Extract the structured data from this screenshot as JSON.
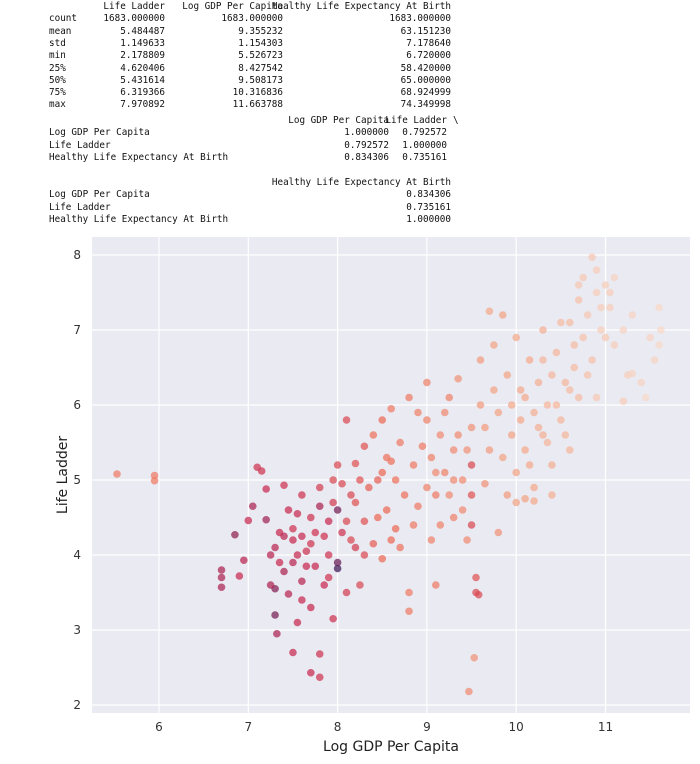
{
  "describe_table": {
    "columns": [
      "Life Ladder",
      "Log GDP Per Capita",
      "Healthy Life Expectancy At Birth"
    ],
    "rows": [
      {
        "index": "count",
        "values": [
          "1683.000000",
          "1683.000000",
          "1683.000000"
        ]
      },
      {
        "index": "mean",
        "values": [
          "5.484487",
          "9.355232",
          "63.151230"
        ]
      },
      {
        "index": "std",
        "values": [
          "1.149633",
          "1.154303",
          "7.178640"
        ]
      },
      {
        "index": "min",
        "values": [
          "2.178809",
          "5.526723",
          "6.720000"
        ]
      },
      {
        "index": "25%",
        "values": [
          "4.620406",
          "8.427542",
          "58.420000"
        ]
      },
      {
        "index": "50%",
        "values": [
          "5.431614",
          "9.508173",
          "65.000000"
        ]
      },
      {
        "index": "75%",
        "values": [
          "6.319366",
          "10.316836",
          "68.924999"
        ]
      },
      {
        "index": "max",
        "values": [
          "7.970892",
          "11.663788",
          "74.349998"
        ]
      }
    ]
  },
  "corr_table_part1": {
    "columns": [
      "Log GDP Per Capita",
      "Life Ladder"
    ],
    "continuation": "\\",
    "rows": [
      {
        "index": "Log GDP Per Capita",
        "values": [
          "1.000000",
          "0.792572"
        ]
      },
      {
        "index": "Life Ladder",
        "values": [
          "0.792572",
          "1.000000"
        ]
      },
      {
        "index": "Healthy Life Expectancy At Birth",
        "values": [
          "0.834306",
          "0.735161"
        ]
      }
    ]
  },
  "corr_table_part2": {
    "columns": [
      "Healthy Life Expectancy At Birth"
    ],
    "rows": [
      {
        "index": "Log GDP Per Capita",
        "values": [
          "0.834306"
        ]
      },
      {
        "index": "Life Ladder",
        "values": [
          "0.735161"
        ]
      },
      {
        "index": "Healthy Life Expectancy At Birth",
        "values": [
          "1.000000"
        ]
      }
    ]
  },
  "chart_data": {
    "type": "scatter",
    "xlabel": "Log GDP Per Capita",
    "ylabel": "Life Ladder",
    "xlim": [
      5.3,
      11.9
    ],
    "ylim": [
      1.85,
      8.25
    ],
    "xticks": [
      "6",
      "7",
      "8",
      "9",
      "10",
      "11"
    ],
    "yticks": [
      "2",
      "3",
      "4",
      "5",
      "6",
      "7",
      "8"
    ],
    "grid": true,
    "background": "#eaeaf2",
    "color_by": "Healthy Life Expectancy At Birth",
    "colors": {
      "low": "#3e1654",
      "mid_low": "#c7284f",
      "mid": "#ec6a55",
      "mid_high": "#f3a384",
      "high": "#f8d9c7"
    },
    "point_fields": [
      "Log GDP Per Capita",
      "Life Ladder",
      "Healthy Life Expectancy At Birth"
    ],
    "points": [
      [
        5.53,
        5.08,
        60
      ],
      [
        5.95,
        5.06,
        60
      ],
      [
        5.95,
        4.99,
        60
      ],
      [
        6.7,
        3.8,
        50
      ],
      [
        6.7,
        3.7,
        50
      ],
      [
        6.7,
        3.57,
        50
      ],
      [
        6.85,
        4.27,
        48
      ],
      [
        6.9,
        3.72,
        52
      ],
      [
        6.95,
        3.93,
        51
      ],
      [
        7.0,
        4.46,
        52
      ],
      [
        7.05,
        4.65,
        50
      ],
      [
        7.1,
        5.17,
        53
      ],
      [
        7.15,
        5.12,
        53
      ],
      [
        7.2,
        4.88,
        52
      ],
      [
        7.2,
        4.47,
        49
      ],
      [
        7.25,
        4.0,
        51
      ],
      [
        7.3,
        3.55,
        47
      ],
      [
        7.3,
        3.2,
        46
      ],
      [
        7.32,
        2.95,
        50
      ],
      [
        7.35,
        4.3,
        52
      ],
      [
        7.4,
        4.93,
        53
      ],
      [
        7.4,
        3.78,
        50
      ],
      [
        7.45,
        3.48,
        51
      ],
      [
        7.5,
        4.2,
        52
      ],
      [
        7.5,
        2.7,
        52
      ],
      [
        7.5,
        3.9,
        51
      ],
      [
        7.55,
        4.55,
        52
      ],
      [
        7.55,
        3.1,
        52
      ],
      [
        7.6,
        4.8,
        53
      ],
      [
        7.6,
        3.65,
        51
      ],
      [
        7.65,
        4.05,
        53
      ],
      [
        7.7,
        4.5,
        53
      ],
      [
        7.7,
        3.3,
        52
      ],
      [
        7.7,
        2.43,
        52
      ],
      [
        7.75,
        4.3,
        53
      ],
      [
        7.75,
        3.85,
        52
      ],
      [
        7.8,
        4.9,
        54
      ],
      [
        7.8,
        4.65,
        50
      ],
      [
        7.8,
        2.68,
        53
      ],
      [
        7.8,
        2.37,
        53
      ],
      [
        7.85,
        3.6,
        52
      ],
      [
        7.9,
        4.0,
        53
      ],
      [
        7.9,
        4.45,
        52
      ],
      [
        7.95,
        3.15,
        53
      ],
      [
        7.95,
        5.0,
        55
      ],
      [
        8.0,
        3.82,
        42
      ],
      [
        8.0,
        3.9,
        45
      ],
      [
        8.0,
        4.6,
        46
      ],
      [
        8.0,
        5.2,
        55
      ],
      [
        8.05,
        4.3,
        53
      ],
      [
        8.1,
        3.5,
        54
      ],
      [
        8.1,
        5.8,
        55
      ],
      [
        8.15,
        4.8,
        55
      ],
      [
        8.2,
        4.1,
        54
      ],
      [
        8.2,
        5.22,
        56
      ],
      [
        8.25,
        3.6,
        55
      ],
      [
        8.3,
        5.45,
        56
      ],
      [
        8.3,
        4.45,
        56
      ],
      [
        7.3,
        4.1,
        51
      ],
      [
        7.35,
        3.9,
        52
      ],
      [
        7.45,
        4.6,
        52
      ],
      [
        7.5,
        4.35,
        53
      ],
      [
        7.55,
        4.0,
        52
      ],
      [
        7.6,
        3.4,
        52
      ],
      [
        7.65,
        3.85,
        52
      ],
      [
        7.7,
        4.15,
        53
      ],
      [
        7.85,
        4.25,
        53
      ],
      [
        7.9,
        3.7,
        53
      ],
      [
        7.95,
        4.7,
        54
      ],
      [
        8.05,
        4.95,
        55
      ],
      [
        8.1,
        4.45,
        55
      ],
      [
        8.15,
        4.2,
        55
      ],
      [
        8.2,
        4.7,
        56
      ],
      [
        8.25,
        5.0,
        56
      ],
      [
        8.3,
        4.0,
        55
      ],
      [
        7.4,
        4.25,
        51
      ],
      [
        7.25,
        3.6,
        50
      ],
      [
        7.6,
        4.25,
        52
      ],
      [
        8.35,
        4.9,
        57
      ],
      [
        8.4,
        4.15,
        57
      ],
      [
        8.4,
        5.6,
        59
      ],
      [
        8.45,
        5.0,
        57
      ],
      [
        8.5,
        5.8,
        58
      ],
      [
        8.5,
        3.95,
        58
      ],
      [
        8.55,
        4.6,
        58
      ],
      [
        8.6,
        5.25,
        59
      ],
      [
        8.6,
        5.95,
        60
      ],
      [
        8.65,
        4.35,
        58
      ],
      [
        8.7,
        5.5,
        60
      ],
      [
        8.75,
        4.8,
        59
      ],
      [
        8.8,
        3.25,
        60
      ],
      [
        8.8,
        3.5,
        60
      ],
      [
        8.8,
        6.1,
        60
      ],
      [
        8.85,
        5.2,
        60
      ],
      [
        8.9,
        4.65,
        60
      ],
      [
        8.95,
        5.45,
        60
      ],
      [
        9.0,
        5.8,
        61
      ],
      [
        9.0,
        6.3,
        61
      ],
      [
        9.05,
        4.2,
        61
      ],
      [
        9.1,
        4.8,
        60
      ],
      [
        9.1,
        3.6,
        60
      ],
      [
        9.15,
        5.6,
        62
      ],
      [
        9.2,
        5.1,
        61
      ],
      [
        9.25,
        6.1,
        61
      ],
      [
        9.3,
        4.5,
        61
      ],
      [
        9.3,
        5.4,
        62
      ],
      [
        9.35,
        6.35,
        63
      ],
      [
        9.4,
        5.0,
        62
      ],
      [
        9.45,
        4.2,
        62
      ],
      [
        9.5,
        5.7,
        63
      ],
      [
        9.5,
        4.8,
        56
      ],
      [
        9.5,
        5.2,
        55
      ],
      [
        9.5,
        4.4,
        55
      ],
      [
        9.55,
        3.7,
        56
      ],
      [
        9.55,
        3.5,
        55
      ],
      [
        9.58,
        3.47,
        55
      ],
      [
        9.47,
        2.18,
        62
      ],
      [
        9.53,
        2.63,
        63
      ],
      [
        8.45,
        4.5,
        58
      ],
      [
        8.55,
        5.3,
        59
      ],
      [
        8.65,
        5.0,
        59
      ],
      [
        8.7,
        4.1,
        59
      ],
      [
        8.85,
        4.4,
        60
      ],
      [
        8.9,
        5.9,
        61
      ],
      [
        9.0,
        4.9,
        61
      ],
      [
        9.05,
        5.3,
        61
      ],
      [
        9.15,
        4.4,
        61
      ],
      [
        9.2,
        5.9,
        62
      ],
      [
        9.25,
        4.8,
        62
      ],
      [
        9.35,
        5.6,
        62
      ],
      [
        9.4,
        4.6,
        62
      ],
      [
        9.45,
        5.4,
        63
      ],
      [
        8.5,
        5.1,
        58
      ],
      [
        8.6,
        4.2,
        58
      ],
      [
        9.1,
        5.1,
        62
      ],
      [
        9.3,
        5.0,
        62
      ],
      [
        9.6,
        6.0,
        64
      ],
      [
        9.6,
        6.6,
        64
      ],
      [
        9.65,
        4.95,
        63
      ],
      [
        9.7,
        5.4,
        64
      ],
      [
        9.7,
        7.25,
        66
      ],
      [
        9.75,
        6.8,
        65
      ],
      [
        9.8,
        5.9,
        65
      ],
      [
        9.8,
        4.3,
        63
      ],
      [
        9.85,
        7.2,
        65
      ],
      [
        9.9,
        6.4,
        65
      ],
      [
        9.9,
        4.8,
        64
      ],
      [
        9.95,
        5.6,
        65
      ],
      [
        10.0,
        6.9,
        66
      ],
      [
        10.0,
        5.1,
        65
      ],
      [
        10.05,
        6.2,
        66
      ],
      [
        10.1,
        5.4,
        66
      ],
      [
        10.1,
        4.75,
        65
      ],
      [
        10.15,
        6.6,
        66
      ],
      [
        10.2,
        5.9,
        67
      ],
      [
        10.2,
        4.9,
        66
      ],
      [
        10.25,
        6.3,
        67
      ],
      [
        10.3,
        5.6,
        67
      ],
      [
        10.3,
        7.0,
        67
      ],
      [
        10.35,
        6.0,
        68
      ],
      [
        10.4,
        5.2,
        67
      ],
      [
        10.45,
        6.7,
        68
      ],
      [
        10.5,
        5.8,
        68
      ],
      [
        10.55,
        6.3,
        68
      ],
      [
        10.6,
        7.1,
        69
      ],
      [
        10.6,
        5.4,
        68
      ],
      [
        10.65,
        6.8,
        69
      ],
      [
        10.7,
        7.4,
        70
      ],
      [
        10.7,
        6.1,
        69
      ],
      [
        10.75,
        7.7,
        71
      ],
      [
        10.8,
        7.2,
        71
      ],
      [
        10.85,
        7.97,
        71
      ],
      [
        10.85,
        6.6,
        70
      ],
      [
        10.9,
        7.5,
        72
      ],
      [
        10.95,
        7.0,
        72
      ],
      [
        11.0,
        7.6,
        72
      ],
      [
        11.0,
        6.9,
        71
      ],
      [
        11.05,
        7.3,
        72
      ],
      [
        11.1,
        7.7,
        73
      ],
      [
        11.1,
        6.8,
        72
      ],
      [
        11.2,
        7.0,
        73
      ],
      [
        11.25,
        6.4,
        72
      ],
      [
        11.3,
        7.2,
        73
      ],
      [
        11.4,
        6.3,
        73
      ],
      [
        11.45,
        6.1,
        74
      ],
      [
        11.5,
        6.9,
        73
      ],
      [
        11.55,
        6.6,
        73
      ],
      [
        11.6,
        7.3,
        74
      ],
      [
        11.62,
        7.0,
        74
      ],
      [
        11.6,
        6.8,
        74
      ],
      [
        11.2,
        6.05,
        72
      ],
      [
        11.3,
        6.42,
        73
      ],
      [
        10.9,
        6.1,
        71
      ],
      [
        10.6,
        6.2,
        69
      ],
      [
        10.4,
        4.8,
        67
      ],
      [
        10.2,
        4.72,
        66
      ],
      [
        10.0,
        4.7,
        65
      ],
      [
        10.35,
        5.5,
        68
      ],
      [
        9.65,
        5.7,
        64
      ],
      [
        9.75,
        6.2,
        65
      ],
      [
        9.85,
        5.3,
        65
      ],
      [
        9.95,
        6.0,
        66
      ],
      [
        10.05,
        5.8,
        66
      ],
      [
        10.15,
        5.2,
        66
      ],
      [
        10.25,
        5.7,
        67
      ],
      [
        10.45,
        6.0,
        68
      ],
      [
        10.55,
        5.6,
        68
      ],
      [
        10.65,
        6.5,
        69
      ],
      [
        10.75,
        6.9,
        70
      ],
      [
        10.8,
        6.4,
        70
      ],
      [
        10.95,
        7.3,
        72
      ],
      [
        11.05,
        7.5,
        72
      ],
      [
        10.9,
        7.8,
        72
      ],
      [
        10.7,
        7.6,
        71
      ],
      [
        10.5,
        7.1,
        69
      ],
      [
        10.4,
        6.4,
        68
      ],
      [
        10.3,
        6.6,
        68
      ],
      [
        10.1,
        6.1,
        66
      ]
    ]
  }
}
